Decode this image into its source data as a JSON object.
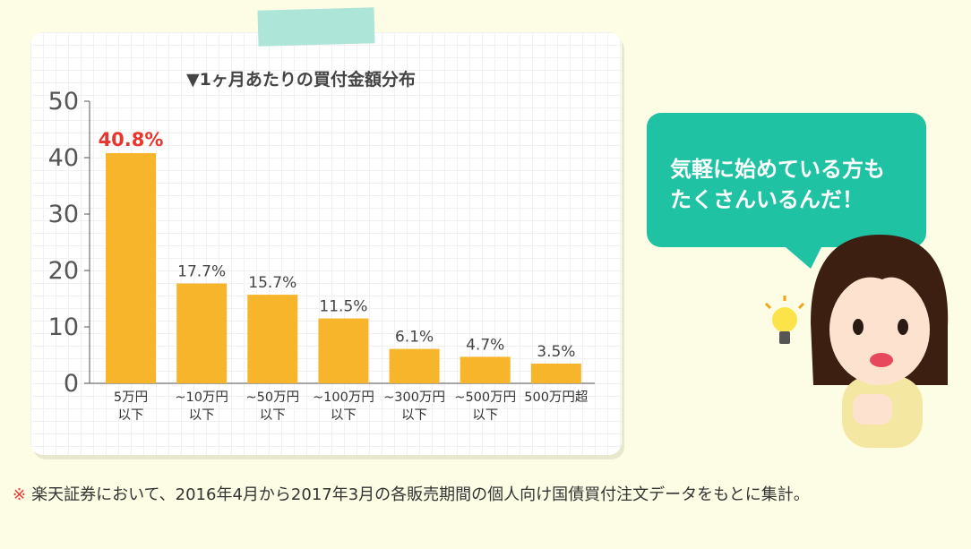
{
  "chart_data": {
    "type": "bar",
    "title": "▼1ヶ月あたりの買付金額分布",
    "categories": [
      [
        "5万円",
        "以下"
      ],
      [
        "~10万円",
        "以下"
      ],
      [
        "~50万円",
        "以下"
      ],
      [
        "~100万円",
        "以下"
      ],
      [
        "~300万円",
        "以下"
      ],
      [
        "~500万円",
        "以下"
      ],
      [
        "500万円超"
      ]
    ],
    "values": [
      40.8,
      17.7,
      15.7,
      11.5,
      6.1,
      4.7,
      3.5
    ],
    "value_labels": [
      "40.8%",
      "17.7%",
      "15.7%",
      "11.5%",
      "6.1%",
      "4.7%",
      "3.5%"
    ],
    "highlight_index": 0,
    "ylim": [
      0,
      50
    ],
    "yticks": [
      0,
      10,
      20,
      30,
      40,
      50
    ],
    "grid": true,
    "colors": {
      "bar": "#f7b52c",
      "highlight_label": "#e8352e",
      "label": "#444444",
      "axis": "#555555"
    }
  },
  "speech_bubble": {
    "line1": "気軽に始めている方も",
    "line2": "たくさんいるんだ！"
  },
  "footnote": {
    "mark": "※",
    "text": "楽天証券において、2016年4月から2017年3月の各販売期間の個人向け国債買付注文データをもとに集計。"
  }
}
